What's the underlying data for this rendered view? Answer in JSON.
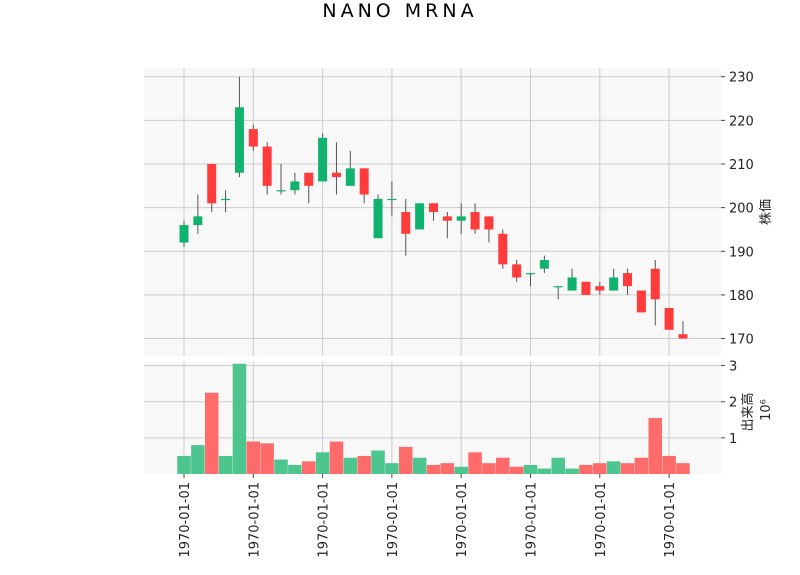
{
  "chart_data": {
    "type": "candlestick",
    "title": "NANO MRNA",
    "price_axis": {
      "label": "株価",
      "ylim": [
        166,
        232
      ],
      "ticks": [
        170,
        180,
        190,
        200,
        210,
        220,
        230
      ]
    },
    "volume_axis": {
      "label": "出来高",
      "exponent_label": "10⁶",
      "ylim": [
        0,
        3.1
      ],
      "ticks": [
        1,
        2,
        3
      ]
    },
    "x_tick_labels": [
      "1970-01-01",
      "1970-01-01",
      "1970-01-01",
      "1970-01-01",
      "1970-01-01",
      "1970-01-01",
      "1970-01-01",
      "1970-01-01"
    ],
    "x_tick_indices": [
      0,
      5,
      10,
      15,
      20,
      25,
      30,
      35
    ],
    "colors": {
      "up": "#0fb36e",
      "down": "#ff3b3b",
      "up_volume": "#4cc68e",
      "down_volume": "#ff6b6b",
      "wick": "#555555",
      "panel_bg": "#f8f8f8",
      "grid": "#cccccc"
    },
    "candles": [
      {
        "o": 192,
        "h": 197,
        "l": 191,
        "c": 196,
        "v": 0.5
      },
      {
        "o": 196,
        "h": 203,
        "l": 194,
        "c": 198,
        "v": 0.8
      },
      {
        "o": 210,
        "h": 210,
        "l": 199,
        "c": 201,
        "v": 2.25
      },
      {
        "o": 202,
        "h": 204,
        "l": 199,
        "c": 202,
        "v": 0.5
      },
      {
        "o": 208,
        "h": 230,
        "l": 207,
        "c": 223,
        "v": 3.05
      },
      {
        "o": 218,
        "h": 219,
        "l": 213,
        "c": 214,
        "v": 0.9
      },
      {
        "o": 214,
        "h": 215,
        "l": 203,
        "c": 205,
        "v": 0.85
      },
      {
        "o": 204,
        "h": 210,
        "l": 203,
        "c": 204,
        "v": 0.4
      },
      {
        "o": 204,
        "h": 208,
        "l": 203,
        "c": 206,
        "v": 0.25
      },
      {
        "o": 208,
        "h": 208,
        "l": 201,
        "c": 205,
        "v": 0.35
      },
      {
        "o": 206,
        "h": 217,
        "l": 206,
        "c": 216,
        "v": 0.6
      },
      {
        "o": 208,
        "h": 215,
        "l": 203,
        "c": 207,
        "v": 0.9
      },
      {
        "o": 205,
        "h": 213,
        "l": 205,
        "c": 209,
        "v": 0.45
      },
      {
        "o": 209,
        "h": 209,
        "l": 201,
        "c": 203,
        "v": 0.5
      },
      {
        "o": 193,
        "h": 203,
        "l": 193,
        "c": 202,
        "v": 0.65
      },
      {
        "o": 202,
        "h": 206,
        "l": 198,
        "c": 202,
        "v": 0.3
      },
      {
        "o": 199,
        "h": 202,
        "l": 189,
        "c": 194,
        "v": 0.75
      },
      {
        "o": 195,
        "h": 201,
        "l": 195,
        "c": 201,
        "v": 0.45
      },
      {
        "o": 201,
        "h": 201,
        "l": 197,
        "c": 199,
        "v": 0.25
      },
      {
        "o": 198,
        "h": 199,
        "l": 193,
        "c": 197,
        "v": 0.3
      },
      {
        "o": 197,
        "h": 201,
        "l": 194,
        "c": 198,
        "v": 0.2
      },
      {
        "o": 199,
        "h": 201,
        "l": 194,
        "c": 195,
        "v": 0.6
      },
      {
        "o": 198,
        "h": 198,
        "l": 192,
        "c": 195,
        "v": 0.3
      },
      {
        "o": 194,
        "h": 195,
        "l": 186,
        "c": 187,
        "v": 0.45
      },
      {
        "o": 187,
        "h": 188,
        "l": 183,
        "c": 184,
        "v": 0.2
      },
      {
        "o": 185,
        "h": 185,
        "l": 182,
        "c": 185,
        "v": 0.25
      },
      {
        "o": 186,
        "h": 189,
        "l": 185,
        "c": 188,
        "v": 0.15
      },
      {
        "o": 182,
        "h": 182,
        "l": 179,
        "c": 182,
        "v": 0.45
      },
      {
        "o": 181,
        "h": 186,
        "l": 181,
        "c": 184,
        "v": 0.15
      },
      {
        "o": 183,
        "h": 183,
        "l": 180,
        "c": 180,
        "v": 0.25
      },
      {
        "o": 182,
        "h": 183,
        "l": 180,
        "c": 181,
        "v": 0.3
      },
      {
        "o": 181,
        "h": 186,
        "l": 181,
        "c": 184,
        "v": 0.35
      },
      {
        "o": 185,
        "h": 186,
        "l": 180,
        "c": 182,
        "v": 0.3
      },
      {
        "o": 181,
        "h": 181,
        "l": 176,
        "c": 176,
        "v": 0.45
      },
      {
        "o": 186,
        "h": 188,
        "l": 173,
        "c": 179,
        "v": 1.55
      },
      {
        "o": 177,
        "h": 177,
        "l": 172,
        "c": 172,
        "v": 0.5
      },
      {
        "o": 171,
        "h": 174,
        "l": 170,
        "c": 170,
        "v": 0.3
      }
    ]
  }
}
